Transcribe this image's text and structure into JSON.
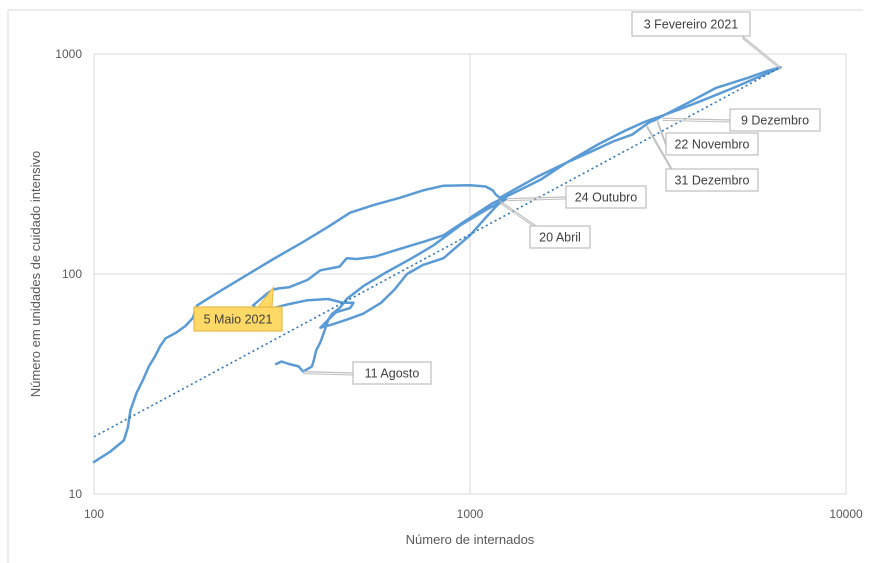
{
  "chart_data": {
    "type": "line",
    "title": "",
    "xlabel": "Número de internados",
    "ylabel": "Número em unidades de cuidado intensivo",
    "x_scale": "log",
    "y_scale": "log",
    "xlim": [
      100,
      10000
    ],
    "ylim": [
      10,
      1000
    ],
    "x_ticks": [
      "100",
      "1000",
      "10000"
    ],
    "y_ticks": [
      "10",
      "100",
      "1000"
    ],
    "grid": true,
    "legend": "none",
    "colors": {
      "series": "#5b9bd5",
      "trend": "#2e75b6",
      "callout_border": "#bfbfbf",
      "highlight_fill": "#ffd966",
      "grid": "#d9d9d9"
    },
    "series": [
      {
        "values": [
          [
            100,
            14
          ],
          [
            110,
            15.5
          ],
          [
            120,
            17.5
          ],
          [
            123,
            20
          ],
          [
            125,
            24
          ],
          [
            130,
            29
          ],
          [
            135,
            33
          ],
          [
            140,
            38
          ],
          [
            145,
            42
          ],
          [
            150,
            47
          ],
          [
            155,
            51
          ],
          [
            165,
            54
          ],
          [
            175,
            58
          ],
          [
            183,
            63
          ],
          [
            188,
            72
          ],
          [
            210,
            81
          ],
          [
            250,
            97
          ],
          [
            300,
            117
          ],
          [
            360,
            140
          ],
          [
            420,
            164
          ],
          [
            480,
            190
          ],
          [
            550,
            205
          ],
          [
            650,
            222
          ],
          [
            750,
            240
          ],
          [
            850,
            252
          ],
          [
            1000,
            253
          ],
          [
            1100,
            250
          ],
          [
            1150,
            240
          ],
          [
            1170,
            230
          ],
          [
            1200,
            222
          ],
          [
            1300,
            240
          ],
          [
            1500,
            275
          ],
          [
            1800,
            320
          ],
          [
            2200,
            390
          ],
          [
            2600,
            450
          ],
          [
            2900,
            490
          ],
          [
            3000,
            500
          ],
          [
            3200,
            520
          ],
          [
            3600,
            560
          ],
          [
            4200,
            620
          ],
          [
            5000,
            700
          ],
          [
            6000,
            800
          ],
          [
            6700,
            870
          ],
          [
            6200,
            840
          ],
          [
            5500,
            780
          ],
          [
            4500,
            700
          ],
          [
            3800,
            600
          ],
          [
            3300,
            530
          ],
          [
            3100,
            500
          ],
          [
            3000,
            490
          ],
          [
            2900,
            470
          ],
          [
            2700,
            430
          ],
          [
            2400,
            400
          ],
          [
            2100,
            360
          ],
          [
            1800,
            320
          ],
          [
            1550,
            270
          ],
          [
            1350,
            240
          ],
          [
            1250,
            225
          ],
          [
            1150,
            210
          ],
          [
            1050,
            190
          ],
          [
            950,
            170
          ],
          [
            850,
            150
          ],
          [
            750,
            140
          ],
          [
            650,
            130
          ],
          [
            560,
            120
          ],
          [
            500,
            117
          ],
          [
            470,
            118
          ],
          [
            450,
            108
          ],
          [
            400,
            104
          ],
          [
            370,
            94
          ],
          [
            330,
            87
          ],
          [
            310,
            86
          ],
          [
            300,
            85
          ],
          [
            290,
            82
          ],
          [
            275,
            76
          ],
          [
            265,
            72
          ],
          [
            270,
            70
          ],
          [
            280,
            69
          ],
          [
            300,
            70
          ],
          [
            330,
            73
          ],
          [
            370,
            76
          ],
          [
            420,
            77
          ],
          [
            460,
            74
          ],
          [
            490,
            74
          ],
          [
            480,
            70
          ],
          [
            440,
            67
          ],
          [
            420,
            62
          ],
          [
            400,
            57
          ],
          [
            430,
            59
          ],
          [
            470,
            62
          ],
          [
            520,
            66
          ],
          [
            580,
            74
          ],
          [
            630,
            85
          ],
          [
            680,
            100
          ],
          [
            750,
            110
          ],
          [
            850,
            118
          ],
          [
            1000,
            150
          ],
          [
            1100,
            180
          ],
          [
            1180,
            205
          ],
          [
            1250,
            220
          ],
          [
            1100,
            195
          ],
          [
            950,
            168
          ],
          [
            800,
            135
          ],
          [
            700,
            118
          ],
          [
            600,
            102
          ],
          [
            520,
            88
          ],
          [
            470,
            77
          ],
          [
            450,
            70
          ],
          [
            430,
            66
          ],
          [
            420,
            62
          ],
          [
            410,
            55
          ],
          [
            400,
            49
          ],
          [
            390,
            45
          ],
          [
            385,
            41
          ],
          [
            380,
            38
          ],
          [
            360,
            36
          ],
          [
            350,
            38
          ],
          [
            330,
            39
          ],
          [
            315,
            40
          ],
          [
            305,
            39
          ]
        ]
      }
    ],
    "trendline": {
      "style": "dotted",
      "from": [
        100,
        18.2
      ],
      "to": [
        6700,
        870
      ]
    },
    "annotations": [
      {
        "label": "3 Fevereiro 2021",
        "point": [
          6700,
          870
        ],
        "highlight": false
      },
      {
        "label": "9 Dezembro",
        "point": [
          3250,
          510
        ],
        "highlight": false
      },
      {
        "label": "22 Novembro",
        "point": [
          3150,
          500
        ],
        "highlight": false
      },
      {
        "label": "31 Dezembro",
        "point": [
          2950,
          475
        ],
        "highlight": false
      },
      {
        "label": "24 Outubro",
        "point": [
          1250,
          220
        ],
        "highlight": false
      },
      {
        "label": "20 Abril",
        "point": [
          1200,
          215
        ],
        "highlight": false
      },
      {
        "label": "5 Maio 2021",
        "point": [
          300,
          87
        ],
        "highlight": true
      },
      {
        "label": "11 Agosto",
        "point": [
          360,
          36
        ],
        "highlight": false
      }
    ]
  }
}
